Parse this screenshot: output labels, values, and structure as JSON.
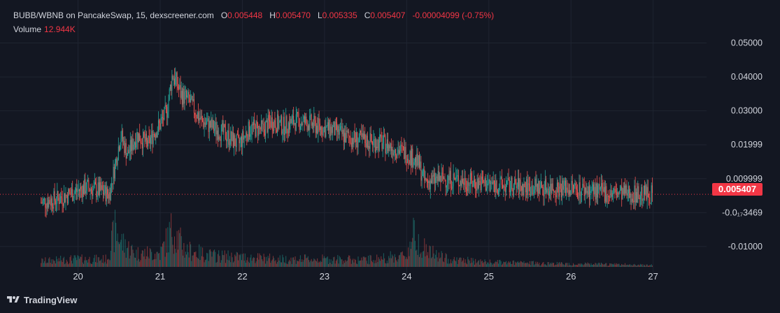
{
  "legend": {
    "title": "BUBB/WBNB on PancakeSwap, 15, dexscreener.com",
    "o_label": "O",
    "o_value": "0.005448",
    "h_label": "H",
    "h_value": "0.005470",
    "l_label": "L",
    "l_value": "0.005335",
    "c_label": "C",
    "c_value": "0.005407",
    "change": "-0.00004099 (-0.75%)",
    "volume_label": "Volume",
    "volume_value": "12.944K"
  },
  "brand": {
    "name": "TradingView"
  },
  "last_price": "0.005407",
  "colors": {
    "background": "#131722",
    "up": "#26a69a",
    "down": "#ef5350",
    "grid": "#1f2431",
    "text": "#d1d4dc",
    "price_line": "#f23645"
  },
  "chart_data": {
    "type": "candlestick",
    "title": "BUBB/WBNB on PancakeSwap, 15, dexscreener.com",
    "x_tick_labels": [
      "20",
      "21",
      "22",
      "23",
      "24",
      "25",
      "26",
      "27"
    ],
    "x_ticks": [
      20,
      21,
      22,
      23,
      24,
      25,
      26,
      27
    ],
    "y_tick_labels": [
      "0.05000",
      "0.04000",
      "0.03000",
      "0.01999",
      "0.009999",
      "-0.0₁₇3469",
      "-0.01000"
    ],
    "y_ticks": [
      0.05,
      0.04,
      0.03,
      0.02,
      0.01,
      0.0,
      -0.01
    ],
    "xlim": [
      19.05,
      27.65
    ],
    "ylim": [
      -0.016,
      0.0565
    ],
    "last_price": 0.005407,
    "grid": true,
    "price_path": [
      [
        19.55,
        0.003
      ],
      [
        19.75,
        0.004
      ],
      [
        19.95,
        0.006
      ],
      [
        20.1,
        0.0075
      ],
      [
        20.25,
        0.0065
      ],
      [
        20.38,
        0.0055
      ],
      [
        20.45,
        0.014
      ],
      [
        20.52,
        0.023
      ],
      [
        20.6,
        0.017
      ],
      [
        20.72,
        0.023
      ],
      [
        20.85,
        0.02
      ],
      [
        20.92,
        0.0235
      ],
      [
        21.0,
        0.026
      ],
      [
        21.08,
        0.03
      ],
      [
        21.15,
        0.041
      ],
      [
        21.25,
        0.035
      ],
      [
        21.35,
        0.033
      ],
      [
        21.5,
        0.027
      ],
      [
        21.65,
        0.025
      ],
      [
        21.8,
        0.023
      ],
      [
        21.95,
        0.02
      ],
      [
        22.1,
        0.025
      ],
      [
        22.25,
        0.0245
      ],
      [
        22.35,
        0.027
      ],
      [
        22.5,
        0.0255
      ],
      [
        22.65,
        0.027
      ],
      [
        22.8,
        0.0265
      ],
      [
        22.95,
        0.025
      ],
      [
        23.1,
        0.0245
      ],
      [
        23.25,
        0.0225
      ],
      [
        23.4,
        0.0215
      ],
      [
        23.55,
        0.021
      ],
      [
        23.7,
        0.0205
      ],
      [
        23.85,
        0.019
      ],
      [
        24.0,
        0.0175
      ],
      [
        24.08,
        0.016
      ],
      [
        24.15,
        0.014
      ],
      [
        24.22,
        0.009
      ],
      [
        24.32,
        0.0095
      ],
      [
        24.45,
        0.01
      ],
      [
        24.6,
        0.0098
      ],
      [
        24.75,
        0.009
      ],
      [
        25.0,
        0.0085
      ],
      [
        25.2,
        0.0078
      ],
      [
        25.5,
        0.0075
      ],
      [
        25.8,
        0.0074
      ],
      [
        26.1,
        0.007
      ],
      [
        26.3,
        0.0062
      ],
      [
        26.5,
        0.0056
      ],
      [
        26.8,
        0.0055
      ],
      [
        27.0,
        0.0054
      ]
    ],
    "volume_path": [
      [
        19.55,
        0.15
      ],
      [
        19.95,
        0.2
      ],
      [
        20.35,
        0.2
      ],
      [
        20.45,
        0.95
      ],
      [
        20.55,
        0.6
      ],
      [
        20.7,
        0.35
      ],
      [
        21.0,
        0.35
      ],
      [
        21.15,
        1.0
      ],
      [
        21.3,
        0.45
      ],
      [
        21.6,
        0.3
      ],
      [
        22.0,
        0.25
      ],
      [
        22.5,
        0.2
      ],
      [
        23.0,
        0.2
      ],
      [
        23.5,
        0.18
      ],
      [
        24.0,
        0.3
      ],
      [
        24.08,
        0.85
      ],
      [
        24.25,
        0.4
      ],
      [
        24.5,
        0.2
      ],
      [
        25.0,
        0.12
      ],
      [
        26.0,
        0.08
      ],
      [
        27.0,
        0.05
      ]
    ],
    "candle_count": 720,
    "series": [
      {
        "name": "Volume"
      }
    ]
  }
}
